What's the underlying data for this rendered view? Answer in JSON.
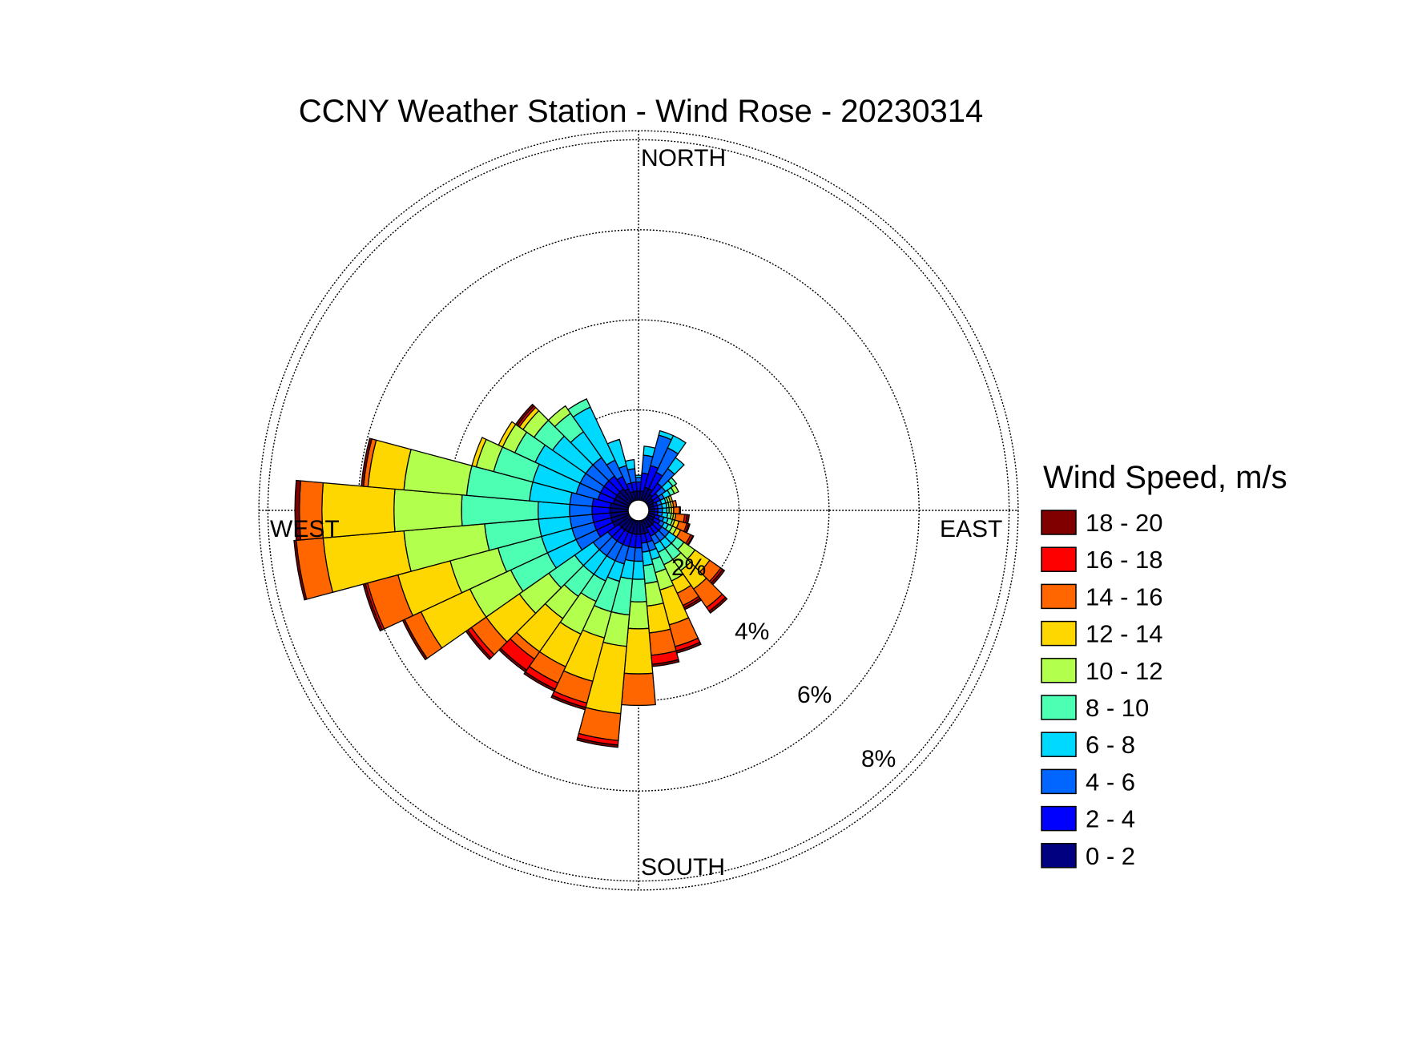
{
  "chart_data": {
    "type": "wind-rose",
    "title": "CCNY Weather Station - Wind Rose - 20230314",
    "direction_labels": {
      "north": "NORTH",
      "east": "EAST",
      "south": "SOUTH",
      "west": "WEST"
    },
    "radial_axis": {
      "unit": "%",
      "ticks": [
        2,
        4,
        6,
        8
      ],
      "tick_labels": [
        "2%",
        "4%",
        "6%",
        "8%"
      ],
      "rmax": 8.2,
      "grid": true
    },
    "legend": {
      "title": "Wind Speed, m/s",
      "position": "right",
      "bins": [
        {
          "label": "18 - 20",
          "color": "#800000"
        },
        {
          "label": "16 - 18",
          "color": "#ff0000"
        },
        {
          "label": "14 - 16",
          "color": "#ff6600"
        },
        {
          "label": "12 - 14",
          "color": "#ffd700"
        },
        {
          "label": "10 - 12",
          "color": "#b2ff4d"
        },
        {
          "label": "8 - 10",
          "color": "#4dffb3"
        },
        {
          "label": "6 - 8",
          "color": "#00d9ff"
        },
        {
          "label": "4 - 6",
          "color": "#0066ff"
        },
        {
          "label": "2 - 4",
          "color": "#0000ff"
        },
        {
          "label": "0 - 2",
          "color": "#000080"
        }
      ]
    },
    "speed_bins_ascending": [
      "0 - 2",
      "2 - 4",
      "4 - 6",
      "6 - 8",
      "8 - 10",
      "10 - 12",
      "12 - 14",
      "14 - 16",
      "16 - 18",
      "18 - 20"
    ],
    "sector_width_deg": 10,
    "sectors": [
      {
        "direction_deg": 0,
        "cumulative_percent": [
          0.2,
          0.4,
          0.5,
          0.55,
          0.55,
          0.55,
          0.55,
          0.55,
          0.55,
          0.55
        ]
      },
      {
        "direction_deg": 10,
        "cumulative_percent": [
          0.2,
          0.6,
          1.0,
          1.2,
          1.2,
          1.2,
          1.2,
          1.2,
          1.2,
          1.2
        ]
      },
      {
        "direction_deg": 20,
        "cumulative_percent": [
          0.3,
          0.8,
          1.5,
          1.6,
          1.6,
          1.6,
          1.6,
          1.6,
          1.6,
          1.6
        ]
      },
      {
        "direction_deg": 30,
        "cumulative_percent": [
          0.3,
          0.7,
          1.3,
          1.6,
          1.6,
          1.6,
          1.6,
          1.6,
          1.6,
          1.6
        ]
      },
      {
        "direction_deg": 40,
        "cumulative_percent": [
          0.2,
          0.5,
          0.9,
          1.2,
          1.2,
          1.2,
          1.2,
          1.2,
          1.2,
          1.2
        ]
      },
      {
        "direction_deg": 50,
        "cumulative_percent": [
          0.15,
          0.3,
          0.5,
          0.7,
          0.8,
          0.8,
          0.8,
          0.8,
          0.8,
          0.8
        ]
      },
      {
        "direction_deg": 60,
        "cumulative_percent": [
          0.15,
          0.3,
          0.4,
          0.55,
          0.65,
          0.75,
          0.75,
          0.75,
          0.75,
          0.75
        ]
      },
      {
        "direction_deg": 70,
        "cumulative_percent": [
          0.12,
          0.2,
          0.3,
          0.4,
          0.45,
          0.5,
          0.55,
          0.55,
          0.55,
          0.55
        ]
      },
      {
        "direction_deg": 80,
        "cumulative_percent": [
          0.12,
          0.2,
          0.3,
          0.4,
          0.45,
          0.5,
          0.55,
          0.62,
          0.62,
          0.62
        ]
      },
      {
        "direction_deg": 90,
        "cumulative_percent": [
          0.12,
          0.2,
          0.3,
          0.4,
          0.45,
          0.5,
          0.55,
          0.68,
          0.7,
          0.7
        ]
      },
      {
        "direction_deg": 100,
        "cumulative_percent": [
          0.12,
          0.2,
          0.3,
          0.42,
          0.5,
          0.55,
          0.6,
          0.8,
          0.85,
          0.9
        ]
      },
      {
        "direction_deg": 110,
        "cumulative_percent": [
          0.15,
          0.25,
          0.35,
          0.45,
          0.55,
          0.6,
          0.7,
          0.88,
          0.92,
          0.95
        ]
      },
      {
        "direction_deg": 120,
        "cumulative_percent": [
          0.15,
          0.3,
          0.4,
          0.5,
          0.6,
          0.7,
          0.8,
          1.05,
          1.1,
          1.12
        ]
      },
      {
        "direction_deg": 130,
        "cumulative_percent": [
          0.2,
          0.4,
          0.6,
          0.8,
          1.0,
          1.3,
          1.7,
          2.0,
          2.05,
          2.1
        ]
      },
      {
        "direction_deg": 140,
        "cumulative_percent": [
          0.2,
          0.4,
          0.6,
          0.8,
          1.1,
          1.4,
          1.9,
          2.4,
          2.5,
          2.55
        ]
      },
      {
        "direction_deg": 150,
        "cumulative_percent": [
          0.2,
          0.4,
          0.6,
          0.8,
          1.1,
          1.5,
          1.8,
          2.1,
          2.15,
          2.2
        ]
      },
      {
        "direction_deg": 160,
        "cumulative_percent": [
          0.3,
          0.5,
          0.7,
          0.9,
          1.2,
          1.6,
          2.4,
          2.9,
          3.0,
          3.05
        ]
      },
      {
        "direction_deg": 170,
        "cumulative_percent": [
          0.3,
          0.5,
          0.7,
          1.0,
          1.4,
          1.9,
          2.5,
          3.0,
          3.2,
          3.25
        ]
      },
      {
        "direction_deg": 180,
        "cumulative_percent": [
          0.3,
          0.6,
          0.9,
          1.3,
          1.8,
          2.4,
          3.4,
          4.1,
          4.1,
          4.1
        ]
      },
      {
        "direction_deg": 190,
        "cumulative_percent": [
          0.3,
          0.6,
          0.9,
          1.3,
          2.1,
          2.8,
          4.3,
          4.9,
          5.0,
          5.05
        ]
      },
      {
        "direction_deg": 200,
        "cumulative_percent": [
          0.3,
          0.6,
          1.0,
          1.4,
          2.1,
          2.7,
          3.7,
          4.2,
          4.3,
          4.35
        ]
      },
      {
        "direction_deg": 210,
        "cumulative_percent": [
          0.3,
          0.6,
          1.0,
          1.5,
          2.0,
          2.8,
          3.6,
          4.0,
          4.15,
          4.2
        ]
      },
      {
        "direction_deg": 220,
        "cumulative_percent": [
          0.3,
          0.6,
          1.0,
          1.5,
          2.1,
          2.7,
          3.6,
          3.8,
          4.1,
          4.15
        ]
      },
      {
        "direction_deg": 230,
        "cumulative_percent": [
          0.3,
          0.6,
          1.0,
          1.5,
          2.2,
          3.0,
          3.9,
          4.3,
          4.4,
          4.45
        ]
      },
      {
        "direction_deg": 240,
        "cumulative_percent": [
          0.4,
          0.8,
          1.3,
          2.0,
          2.9,
          3.9,
          5.1,
          5.5,
          5.5,
          5.55
        ]
      },
      {
        "direction_deg": 250,
        "cumulative_percent": [
          0.4,
          0.8,
          1.3,
          2.0,
          3.0,
          4.1,
          5.3,
          6.0,
          6.05,
          6.1
        ]
      },
      {
        "direction_deg": 260,
        "cumulative_percent": [
          0.4,
          0.8,
          1.3,
          2.0,
          3.2,
          5.0,
          6.8,
          7.4,
          7.4,
          7.45
        ]
      },
      {
        "direction_deg": 270,
        "cumulative_percent": [
          0.4,
          0.8,
          1.3,
          2.0,
          3.7,
          5.2,
          6.8,
          7.3,
          7.3,
          7.4
        ]
      },
      {
        "direction_deg": 280,
        "cumulative_percent": [
          0.4,
          0.8,
          1.3,
          2.2,
          3.6,
          5.0,
          5.8,
          5.9,
          5.9,
          5.95
        ]
      },
      {
        "direction_deg": 290,
        "cumulative_percent": [
          0.35,
          0.7,
          1.2,
          2.2,
          3.1,
          3.5,
          3.6,
          3.6,
          3.6,
          3.6
        ]
      },
      {
        "direction_deg": 300,
        "cumulative_percent": [
          0.35,
          0.7,
          1.2,
          2.3,
          2.8,
          3.1,
          3.2,
          3.2,
          3.2,
          3.2
        ]
      },
      {
        "direction_deg": 310,
        "cumulative_percent": [
          0.35,
          0.7,
          1.2,
          2.1,
          2.6,
          2.9,
          3.0,
          3.0,
          3.05,
          3.1
        ]
      },
      {
        "direction_deg": 320,
        "cumulative_percent": [
          0.35,
          0.7,
          1.2,
          1.9,
          2.4,
          2.6,
          2.6,
          2.6,
          2.6,
          2.6
        ]
      },
      {
        "direction_deg": 330,
        "cumulative_percent": [
          0.3,
          0.6,
          1.0,
          2.3,
          2.5,
          2.5,
          2.5,
          2.5,
          2.5,
          2.5
        ]
      },
      {
        "direction_deg": 340,
        "cumulative_percent": [
          0.2,
          0.4,
          0.8,
          1.4,
          1.4,
          1.4,
          1.4,
          1.4,
          1.4,
          1.4
        ]
      },
      {
        "direction_deg": 350,
        "cumulative_percent": [
          0.2,
          0.4,
          0.7,
          0.9,
          0.9,
          0.9,
          0.9,
          0.9,
          0.9,
          0.9
        ]
      }
    ]
  }
}
